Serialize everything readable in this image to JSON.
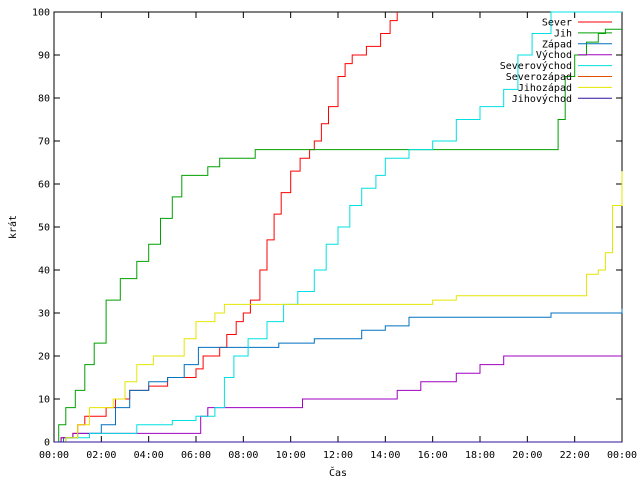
{
  "chart_data": {
    "type": "line",
    "title": "",
    "xlabel": "Čas",
    "ylabel": "krát",
    "xlim": [
      0,
      24
    ],
    "ylim": [
      0,
      100
    ],
    "x_ticks": [
      "00:00",
      "02:00",
      "04:00",
      "06:00",
      "08:00",
      "10:00",
      "12:00",
      "14:00",
      "16:00",
      "18:00",
      "20:00",
      "22:00",
      "00:00"
    ],
    "y_ticks": [
      "0",
      "10",
      "20",
      "30",
      "40",
      "50",
      "60",
      "70",
      "80",
      "90",
      "100"
    ],
    "legend_position": "top-right",
    "grid": false,
    "series": [
      {
        "name": "Sever",
        "color": "#ff0000",
        "points": [
          [
            0,
            0
          ],
          [
            0.3,
            1
          ],
          [
            0.8,
            2
          ],
          [
            1,
            4
          ],
          [
            1.3,
            6
          ],
          [
            2.2,
            8
          ],
          [
            2.6,
            10
          ],
          [
            3.2,
            12
          ],
          [
            4,
            13
          ],
          [
            4.8,
            15
          ],
          [
            5.7,
            15
          ],
          [
            6,
            17
          ],
          [
            6.3,
            20
          ],
          [
            7,
            22
          ],
          [
            7.3,
            25
          ],
          [
            7.7,
            28
          ],
          [
            8,
            30
          ],
          [
            8.3,
            33
          ],
          [
            8.7,
            40
          ],
          [
            9,
            47
          ],
          [
            9.3,
            53
          ],
          [
            9.6,
            58
          ],
          [
            10,
            63
          ],
          [
            10.4,
            66
          ],
          [
            10.8,
            68
          ],
          [
            11,
            70
          ],
          [
            11.3,
            74
          ],
          [
            11.6,
            78
          ],
          [
            12,
            85
          ],
          [
            12.3,
            88
          ],
          [
            12.6,
            90
          ],
          [
            13.2,
            92
          ],
          [
            13.8,
            95
          ],
          [
            14.2,
            98
          ],
          [
            14.5,
            100
          ]
        ]
      },
      {
        "name": "Jih",
        "color": "#00a000",
        "points": [
          [
            0,
            0
          ],
          [
            0.2,
            4
          ],
          [
            0.5,
            8
          ],
          [
            0.9,
            12
          ],
          [
            1.3,
            18
          ],
          [
            1.7,
            23
          ],
          [
            2.2,
            33
          ],
          [
            2.8,
            38
          ],
          [
            3.5,
            42
          ],
          [
            4,
            46
          ],
          [
            4.5,
            52
          ],
          [
            5,
            57
          ],
          [
            5.4,
            62
          ],
          [
            6.5,
            64
          ],
          [
            7,
            66
          ],
          [
            8.5,
            68
          ],
          [
            9,
            68
          ],
          [
            21,
            68
          ],
          [
            21.3,
            75
          ],
          [
            21.6,
            85
          ],
          [
            22,
            90
          ],
          [
            22.5,
            93
          ],
          [
            23,
            95
          ],
          [
            23.3,
            96
          ],
          [
            24,
            96
          ]
        ]
      },
      {
        "name": "Západ",
        "color": "#0070c0",
        "points": [
          [
            0,
            0
          ],
          [
            0.4,
            1
          ],
          [
            1,
            2
          ],
          [
            2,
            4
          ],
          [
            2.6,
            8
          ],
          [
            3.2,
            12
          ],
          [
            4,
            14
          ],
          [
            4.8,
            15
          ],
          [
            5.5,
            18
          ],
          [
            6.1,
            22
          ],
          [
            7,
            22
          ],
          [
            8,
            22
          ],
          [
            9.5,
            23
          ],
          [
            11,
            24
          ],
          [
            13,
            26
          ],
          [
            14,
            27
          ],
          [
            15,
            29
          ],
          [
            19,
            29
          ],
          [
            21,
            30
          ],
          [
            24,
            31
          ]
        ]
      },
      {
        "name": "Východ",
        "color": "#a000c0",
        "points": [
          [
            0,
            0
          ],
          [
            0.3,
            1
          ],
          [
            0.8,
            2
          ],
          [
            1.5,
            2
          ],
          [
            6,
            2
          ],
          [
            6.2,
            6
          ],
          [
            6.5,
            8
          ],
          [
            9,
            8
          ],
          [
            10.5,
            10
          ],
          [
            14,
            10
          ],
          [
            14.5,
            12
          ],
          [
            15.5,
            14
          ],
          [
            16,
            14
          ],
          [
            17,
            16
          ],
          [
            18,
            18
          ],
          [
            19,
            20
          ],
          [
            24,
            20
          ]
        ]
      },
      {
        "name": "Severovýchod",
        "color": "#00e0e0",
        "points": [
          [
            0,
            0
          ],
          [
            0.5,
            1
          ],
          [
            1.5,
            2
          ],
          [
            2.5,
            2
          ],
          [
            3.5,
            4
          ],
          [
            4,
            4
          ],
          [
            5,
            5
          ],
          [
            6,
            6
          ],
          [
            6.8,
            8
          ],
          [
            7.2,
            15
          ],
          [
            7.6,
            20
          ],
          [
            8.2,
            24
          ],
          [
            9,
            28
          ],
          [
            9.7,
            32
          ],
          [
            10.3,
            35
          ],
          [
            11,
            40
          ],
          [
            11.5,
            46
          ],
          [
            12,
            50
          ],
          [
            12.5,
            55
          ],
          [
            13,
            59
          ],
          [
            13.6,
            62
          ],
          [
            14,
            66
          ],
          [
            15,
            68
          ],
          [
            16,
            70
          ],
          [
            17,
            75
          ],
          [
            18,
            78
          ],
          [
            19,
            82
          ],
          [
            19.6,
            90
          ],
          [
            20.2,
            95
          ],
          [
            21,
            100
          ],
          [
            24,
            100
          ]
        ]
      },
      {
        "name": "Severozápad",
        "color": "#e05000",
        "points": [
          [
            0,
            0
          ],
          [
            0.5,
            0
          ],
          [
            24,
            0
          ]
        ]
      },
      {
        "name": "Jihozápad",
        "color": "#e6e600",
        "points": [
          [
            0,
            0
          ],
          [
            0.5,
            1
          ],
          [
            1,
            4
          ],
          [
            1.5,
            8
          ],
          [
            2.5,
            10
          ],
          [
            3,
            14
          ],
          [
            3.5,
            18
          ],
          [
            4.2,
            20
          ],
          [
            5.5,
            24
          ],
          [
            6,
            28
          ],
          [
            6.8,
            30
          ],
          [
            7.2,
            32
          ],
          [
            16,
            33
          ],
          [
            17,
            34
          ],
          [
            22,
            34
          ],
          [
            22.5,
            39
          ],
          [
            23,
            40
          ],
          [
            23.3,
            44
          ],
          [
            23.6,
            55
          ],
          [
            24,
            63
          ]
        ]
      },
      {
        "name": "Jihovýchod",
        "color": "#3010a0",
        "points": [
          [
            0,
            0
          ],
          [
            0.3,
            0
          ],
          [
            24,
            0
          ]
        ]
      }
    ]
  }
}
